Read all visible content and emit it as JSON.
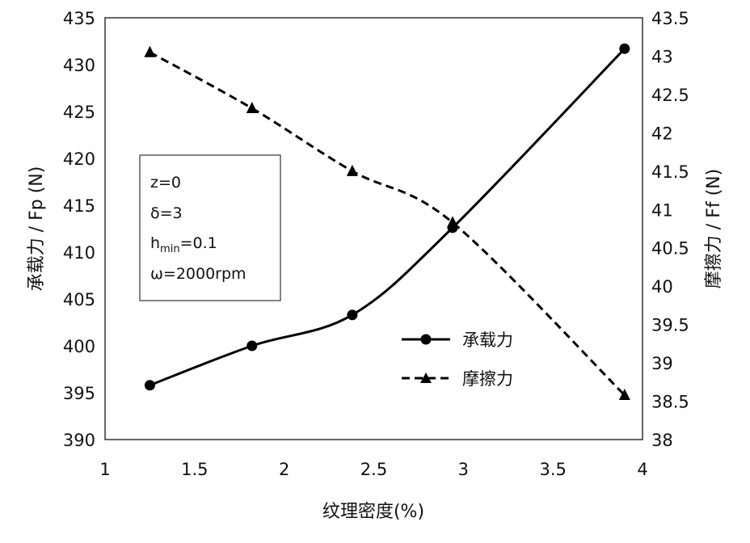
{
  "chart_data": {
    "type": "line",
    "xlabel": "纹理密度(%)",
    "ylabel_left": "承载力 / Fp (N)",
    "ylabel_right": "摩擦力 / Ff (N)",
    "xlim": [
      1,
      4
    ],
    "ylim_left": [
      390,
      435
    ],
    "ylim_right": [
      38,
      43.5
    ],
    "x_ticks": [
      "1",
      "1.5",
      "2",
      "2.5",
      "3",
      "3.5",
      "4"
    ],
    "y_left_ticks": [
      "390",
      "395",
      "400",
      "405",
      "410",
      "415",
      "420",
      "425",
      "430",
      "435"
    ],
    "y_right_ticks": [
      "38",
      "38.5",
      "39",
      "39.5",
      "40",
      "40.5",
      "41",
      "41.5",
      "42",
      "42.5",
      "43",
      "43.5"
    ],
    "grid": false,
    "legend_position": "lower-right",
    "series": [
      {
        "name": "承载力",
        "axis": "left",
        "marker": "circle",
        "line": "solid",
        "color": "#000000",
        "x": [
          1.25,
          1.82,
          2.38,
          2.94,
          3.9
        ],
        "values": [
          395.8,
          400.0,
          403.3,
          412.6,
          431.7
        ]
      },
      {
        "name": "摩擦力",
        "axis": "right",
        "marker": "triangle",
        "line": "dashed",
        "color": "#000000",
        "x": [
          1.25,
          1.82,
          2.38,
          2.94,
          3.9
        ],
        "values": [
          43.05,
          42.32,
          41.5,
          40.83,
          38.58
        ]
      }
    ],
    "annotation_lines": [
      "z=0",
      "δ=3",
      "h",
      "min",
      "=0.1",
      "ω=2000rpm"
    ]
  }
}
